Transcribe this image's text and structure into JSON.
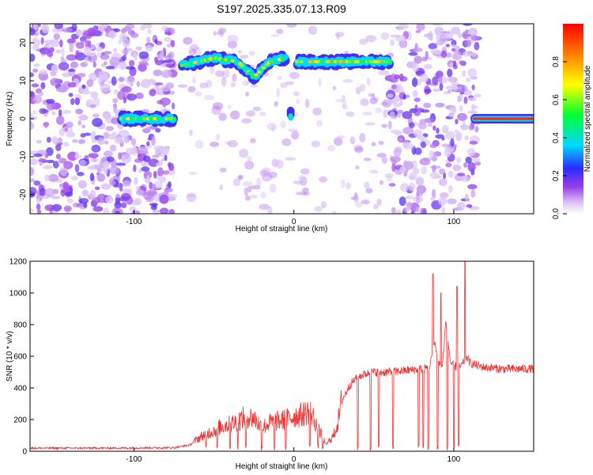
{
  "chart_data": [
    {
      "type": "heatmap",
      "title": "S197.2025.335.07.13.R09",
      "xlabel": "Height of straight line (km)",
      "ylabel": "Frequency (Hz)",
      "xlim": [
        -165,
        150
      ],
      "ylim": [
        -25,
        25
      ],
      "xticks": [
        -100,
        0,
        100
      ],
      "yticks": [
        -20,
        -10,
        0,
        10,
        20
      ],
      "colorbar": {
        "label": "Normalized spectral amplitude",
        "range": [
          0,
          1
        ],
        "ticks": [
          0.0,
          0.2,
          0.4,
          0.6,
          0.8
        ],
        "colors": [
          "#ffffff",
          "#c8a8f0",
          "#8a2be2",
          "#2020ff",
          "#00ffff",
          "#00ff00",
          "#ffff00",
          "#ff8000",
          "#ff0000"
        ]
      },
      "noise_regions_km": [
        [
          -165,
          -75
        ],
        [
          -70,
          60
        ],
        [
          60,
          115
        ]
      ],
      "features": [
        {
          "x": [
            -108,
            -75
          ],
          "y": [
            0,
            0
          ],
          "amplitude": 0.4
        },
        {
          "x": [
            -70,
            -50,
            -35,
            -25,
            -15,
            -5
          ],
          "y": [
            14,
            16,
            15,
            11,
            15,
            16
          ],
          "amplitude": 0.45
        },
        {
          "x": [
            -2,
            -2
          ],
          "y": [
            1,
            1
          ],
          "amplitude": 0.4
        },
        {
          "x": [
            2,
            60
          ],
          "y": [
            15,
            15
          ],
          "amplitude": 0.5
        },
        {
          "x": [
            113,
            150
          ],
          "y": [
            0,
            0
          ],
          "amplitude": 0.95
        }
      ]
    },
    {
      "type": "line",
      "xlabel": "Height of straight line (km)",
      "ylabel": "SNR (10 * v/v)",
      "xlim": [
        -165,
        150
      ],
      "ylim": [
        0,
        1200
      ],
      "xticks": [
        -100,
        0,
        100
      ],
      "yticks": [
        0,
        200,
        400,
        600,
        800,
        1000,
        1200
      ],
      "color": "#ee3333",
      "series": [
        {
          "x": [
            -165,
            -140,
            -110,
            -90,
            -75,
            -65,
            -60,
            -55,
            -50,
            -45,
            -40,
            -35,
            -30,
            -25,
            -20,
            -15,
            -10,
            -5,
            0,
            5,
            10,
            15,
            20,
            25,
            28,
            30,
            35,
            40,
            45,
            50,
            60,
            70,
            80,
            85,
            88,
            90,
            93,
            95,
            98,
            100,
            103,
            105,
            108,
            110,
            115,
            120,
            130,
            140,
            150
          ],
          "y": [
            20,
            20,
            20,
            22,
            22,
            40,
            80,
            110,
            130,
            160,
            170,
            190,
            220,
            210,
            150,
            180,
            190,
            200,
            220,
            230,
            260,
            150,
            40,
            100,
            200,
            320,
            420,
            470,
            490,
            500,
            500,
            510,
            520,
            530,
            700,
            560,
            540,
            820,
            560,
            540,
            530,
            540,
            600,
            560,
            540,
            530,
            520,
            520,
            520
          ]
        }
      ],
      "spikes": [
        {
          "x": 87,
          "y": 1120
        },
        {
          "x": 92,
          "y": 1000
        },
        {
          "x": 102,
          "y": 1040
        },
        {
          "x": 107,
          "y": 1200
        }
      ],
      "dips": [
        -55,
        -48,
        -40,
        -35,
        -30,
        -20,
        -12,
        -5,
        10,
        15,
        18,
        40,
        48,
        53,
        62,
        78,
        81,
        84,
        90,
        96,
        100,
        103
      ]
    }
  ]
}
